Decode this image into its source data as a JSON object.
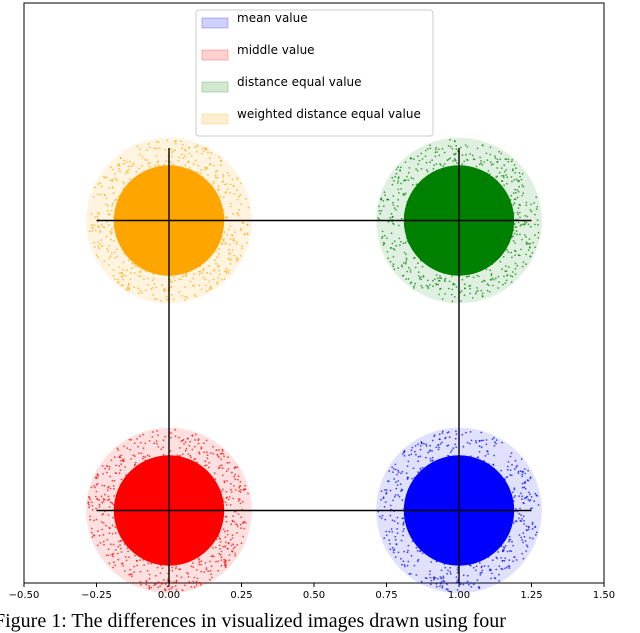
{
  "chart_data": {
    "type": "scatter",
    "title": "",
    "xlabel": "",
    "ylabel": "",
    "xlim": [
      -0.5,
      1.5
    ],
    "x_ticks": [
      "−0.50",
      "−0.25",
      "0.00",
      "0.25",
      "0.50",
      "0.75",
      "1.00",
      "1.25",
      "1.50"
    ],
    "x_tick_values": [
      -0.5,
      -0.25,
      0.0,
      0.25,
      0.5,
      0.75,
      1.0,
      1.25,
      1.5
    ],
    "ylim": [
      -0.25,
      1.75
    ],
    "y_ticks_visible": false,
    "grid": false,
    "legend_position": "top-center",
    "series": [
      {
        "name": "mean value",
        "color": "#0000ff",
        "center": [
          1.0,
          0.0
        ]
      },
      {
        "name": "middle value",
        "color": "#ff0000",
        "center": [
          0.0,
          0.0
        ]
      },
      {
        "name": "distance equal value",
        "color": "#008000",
        "center": [
          1.0,
          1.0
        ]
      },
      {
        "name": "weighted distance equal value",
        "color": "#ffa500",
        "center": [
          0.0,
          1.0
        ]
      }
    ],
    "point_cloud_radius": 0.28,
    "lines": [
      {
        "x": [
          -0.25,
          1.25
        ],
        "y": [
          1.0,
          1.0
        ]
      },
      {
        "x": [
          -0.25,
          1.25
        ],
        "y": [
          0.0,
          0.0
        ]
      },
      {
        "x": [
          0.0,
          0.0
        ],
        "y": [
          -0.25,
          1.25
        ]
      },
      {
        "x": [
          1.0,
          1.0
        ],
        "y": [
          -0.25,
          1.25
        ]
      }
    ]
  },
  "caption": "Figure 1: The differences in visualized images drawn using four"
}
